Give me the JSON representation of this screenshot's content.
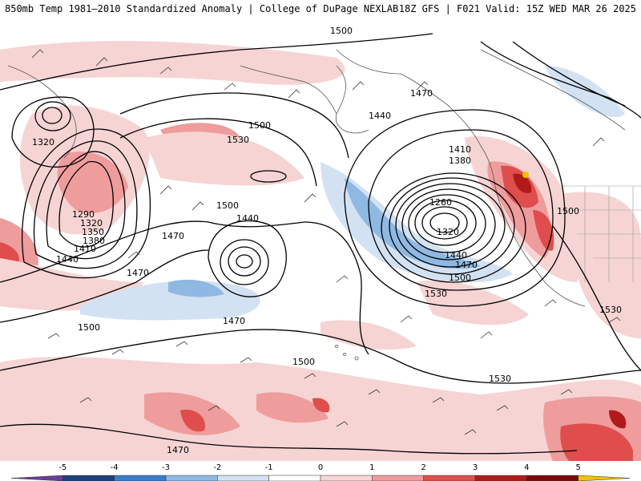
{
  "header": {
    "title": "850mb Temp 1981–2010 Standardized Anomaly | College of DuPage NEXLAB",
    "valid": "18Z GFS | F021 Valid: 15Z WED MAR 26 2025"
  },
  "colors": {
    "neg5": "#6a3d9a",
    "neg4": "#1f3f7a",
    "neg3": "#3a7cc8",
    "neg2": "#8fb8e2",
    "neg1": "#d2e2f2",
    "zero": "#ffffff",
    "pos1": "#f6d4d4",
    "pos2": "#ef9c9c",
    "pos3": "#df4d4d",
    "pos4": "#b01a1a",
    "pos5": "#7a0a0a",
    "pos6": "#f2c300"
  },
  "contours": {
    "labels": [
      {
        "text": "1500"
      },
      {
        "text": "1470"
      },
      {
        "text": "1440"
      },
      {
        "text": "1320"
      },
      {
        "text": "1500"
      },
      {
        "text": "1530"
      },
      {
        "text": "1290"
      },
      {
        "text": "1320"
      },
      {
        "text": "1350"
      },
      {
        "text": "1380"
      },
      {
        "text": "1410"
      },
      {
        "text": "1440"
      },
      {
        "text": "1470"
      },
      {
        "text": "1470"
      },
      {
        "text": "1500"
      },
      {
        "text": "1440"
      },
      {
        "text": "1470"
      },
      {
        "text": "1500"
      },
      {
        "text": "1410"
      },
      {
        "text": "1380"
      },
      {
        "text": "1260"
      },
      {
        "text": "1320"
      },
      {
        "text": "1440"
      },
      {
        "text": "1470"
      },
      {
        "text": "1500"
      },
      {
        "text": "1530"
      },
      {
        "text": "1500"
      },
      {
        "text": "1500"
      },
      {
        "text": "1530"
      },
      {
        "text": "1530"
      },
      {
        "text": "1470"
      }
    ]
  },
  "legend": {
    "ticks": [
      "-5",
      "-4",
      "-3",
      "-2",
      "-1",
      "0",
      "1",
      "2",
      "3",
      "4",
      "5"
    ]
  }
}
